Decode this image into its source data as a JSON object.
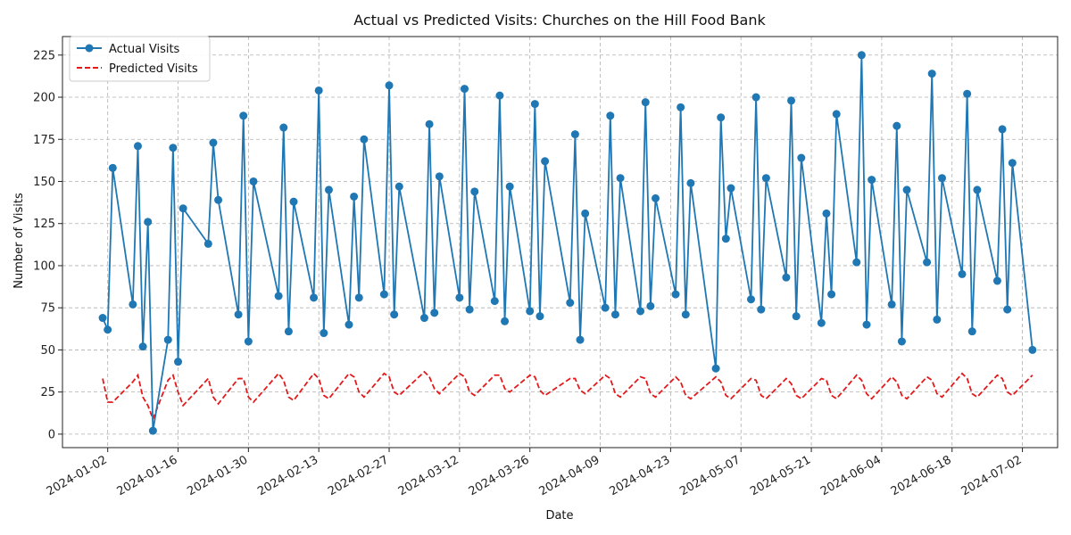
{
  "chart_data": {
    "type": "line",
    "title": "Actual vs Predicted Visits: Churches on the Hill Food Bank",
    "xlabel": "Date",
    "ylabel": "Number of Visits",
    "xlim": [
      "2023-12-24",
      "2024-07-09"
    ],
    "ylim": [
      -8,
      236
    ],
    "x_ticks": [
      "2024-01-02",
      "2024-01-16",
      "2024-01-30",
      "2024-02-13",
      "2024-02-27",
      "2024-03-12",
      "2024-03-26",
      "2024-04-09",
      "2024-04-23",
      "2024-05-07",
      "2024-05-21",
      "2024-06-04",
      "2024-06-18",
      "2024-07-02"
    ],
    "y_ticks": [
      0,
      25,
      50,
      75,
      100,
      125,
      150,
      175,
      200,
      225
    ],
    "grid": true,
    "legend_position": "upper-left",
    "colors": {
      "actual": "#1f77b4",
      "predicted": "#e31a1c"
    },
    "series": [
      {
        "name": "Actual Visits",
        "style": "solid-with-markers",
        "points": [
          [
            "2024-01-01",
            69
          ],
          [
            "2024-01-02",
            62
          ],
          [
            "2024-01-03",
            158
          ],
          [
            "2024-01-07",
            77
          ],
          [
            "2024-01-08",
            171
          ],
          [
            "2024-01-09",
            52
          ],
          [
            "2024-01-10",
            126
          ],
          [
            "2024-01-11",
            2
          ],
          [
            "2024-01-14",
            56
          ],
          [
            "2024-01-15",
            170
          ],
          [
            "2024-01-16",
            43
          ],
          [
            "2024-01-17",
            134
          ],
          [
            "2024-01-22",
            113
          ],
          [
            "2024-01-23",
            173
          ],
          [
            "2024-01-24",
            139
          ],
          [
            "2024-01-28",
            71
          ],
          [
            "2024-01-29",
            189
          ],
          [
            "2024-01-30",
            55
          ],
          [
            "2024-01-31",
            150
          ],
          [
            "2024-02-05",
            82
          ],
          [
            "2024-02-06",
            182
          ],
          [
            "2024-02-07",
            61
          ],
          [
            "2024-02-08",
            138
          ],
          [
            "2024-02-12",
            81
          ],
          [
            "2024-02-13",
            204
          ],
          [
            "2024-02-14",
            60
          ],
          [
            "2024-02-15",
            145
          ],
          [
            "2024-02-19",
            65
          ],
          [
            "2024-02-20",
            141
          ],
          [
            "2024-02-21",
            81
          ],
          [
            "2024-02-22",
            175
          ],
          [
            "2024-02-26",
            83
          ],
          [
            "2024-02-27",
            207
          ],
          [
            "2024-02-28",
            71
          ],
          [
            "2024-02-29",
            147
          ],
          [
            "2024-03-05",
            69
          ],
          [
            "2024-03-06",
            184
          ],
          [
            "2024-03-07",
            72
          ],
          [
            "2024-03-08",
            153
          ],
          [
            "2024-03-12",
            81
          ],
          [
            "2024-03-13",
            205
          ],
          [
            "2024-03-14",
            74
          ],
          [
            "2024-03-15",
            144
          ],
          [
            "2024-03-19",
            79
          ],
          [
            "2024-03-20",
            201
          ],
          [
            "2024-03-21",
            67
          ],
          [
            "2024-03-22",
            147
          ],
          [
            "2024-03-26",
            73
          ],
          [
            "2024-03-27",
            196
          ],
          [
            "2024-03-28",
            70
          ],
          [
            "2024-03-29",
            162
          ],
          [
            "2024-04-03",
            78
          ],
          [
            "2024-04-04",
            178
          ],
          [
            "2024-04-05",
            56
          ],
          [
            "2024-04-06",
            131
          ],
          [
            "2024-04-10",
            75
          ],
          [
            "2024-04-11",
            189
          ],
          [
            "2024-04-12",
            71
          ],
          [
            "2024-04-13",
            152
          ],
          [
            "2024-04-17",
            73
          ],
          [
            "2024-04-18",
            197
          ],
          [
            "2024-04-19",
            76
          ],
          [
            "2024-04-20",
            140
          ],
          [
            "2024-04-24",
            83
          ],
          [
            "2024-04-25",
            194
          ],
          [
            "2024-04-26",
            71
          ],
          [
            "2024-04-27",
            149
          ],
          [
            "2024-05-02",
            39
          ],
          [
            "2024-05-03",
            188
          ],
          [
            "2024-05-04",
            116
          ],
          [
            "2024-05-05",
            146
          ],
          [
            "2024-05-09",
            80
          ],
          [
            "2024-05-10",
            200
          ],
          [
            "2024-05-11",
            74
          ],
          [
            "2024-05-12",
            152
          ],
          [
            "2024-05-16",
            93
          ],
          [
            "2024-05-17",
            198
          ],
          [
            "2024-05-18",
            70
          ],
          [
            "2024-05-19",
            164
          ],
          [
            "2024-05-23",
            66
          ],
          [
            "2024-05-24",
            131
          ],
          [
            "2024-05-25",
            83
          ],
          [
            "2024-05-26",
            190
          ],
          [
            "2024-05-30",
            102
          ],
          [
            "2024-05-31",
            225
          ],
          [
            "2024-06-01",
            65
          ],
          [
            "2024-06-02",
            151
          ],
          [
            "2024-06-06",
            77
          ],
          [
            "2024-06-07",
            183
          ],
          [
            "2024-06-08",
            55
          ],
          [
            "2024-06-09",
            145
          ],
          [
            "2024-06-13",
            102
          ],
          [
            "2024-06-14",
            214
          ],
          [
            "2024-06-15",
            68
          ],
          [
            "2024-06-16",
            152
          ],
          [
            "2024-06-20",
            95
          ],
          [
            "2024-06-21",
            202
          ],
          [
            "2024-06-22",
            61
          ],
          [
            "2024-06-23",
            145
          ],
          [
            "2024-06-27",
            91
          ],
          [
            "2024-06-28",
            181
          ],
          [
            "2024-06-29",
            74
          ],
          [
            "2024-06-30",
            161
          ],
          [
            "2024-07-04",
            50
          ]
        ]
      },
      {
        "name": "Predicted Visits",
        "style": "dashed",
        "points": [
          [
            "2024-01-01",
            33
          ],
          [
            "2024-01-02",
            19
          ],
          [
            "2024-01-03",
            19
          ],
          [
            "2024-01-07",
            31
          ],
          [
            "2024-01-08",
            35
          ],
          [
            "2024-01-09",
            22
          ],
          [
            "2024-01-10",
            17
          ],
          [
            "2024-01-11",
            9
          ],
          [
            "2024-01-14",
            32
          ],
          [
            "2024-01-15",
            35
          ],
          [
            "2024-01-16",
            25
          ],
          [
            "2024-01-17",
            17
          ],
          [
            "2024-01-22",
            33
          ],
          [
            "2024-01-23",
            22
          ],
          [
            "2024-01-24",
            18
          ],
          [
            "2024-01-28",
            33
          ],
          [
            "2024-01-29",
            33
          ],
          [
            "2024-01-30",
            22
          ],
          [
            "2024-01-31",
            19
          ],
          [
            "2024-02-05",
            36
          ],
          [
            "2024-02-06",
            32
          ],
          [
            "2024-02-07",
            22
          ],
          [
            "2024-02-08",
            20
          ],
          [
            "2024-02-12",
            36
          ],
          [
            "2024-02-13",
            33
          ],
          [
            "2024-02-14",
            23
          ],
          [
            "2024-02-15",
            21
          ],
          [
            "2024-02-19",
            36
          ],
          [
            "2024-02-20",
            34
          ],
          [
            "2024-02-21",
            25
          ],
          [
            "2024-02-22",
            22
          ],
          [
            "2024-02-26",
            36
          ],
          [
            "2024-02-27",
            34
          ],
          [
            "2024-02-28",
            25
          ],
          [
            "2024-02-29",
            23
          ],
          [
            "2024-03-05",
            37
          ],
          [
            "2024-03-06",
            34
          ],
          [
            "2024-03-07",
            27
          ],
          [
            "2024-03-08",
            24
          ],
          [
            "2024-03-12",
            36
          ],
          [
            "2024-03-13",
            34
          ],
          [
            "2024-03-14",
            25
          ],
          [
            "2024-03-15",
            23
          ],
          [
            "2024-03-19",
            35
          ],
          [
            "2024-03-20",
            35
          ],
          [
            "2024-03-21",
            27
          ],
          [
            "2024-03-22",
            25
          ],
          [
            "2024-03-26",
            35
          ],
          [
            "2024-03-27",
            34
          ],
          [
            "2024-03-28",
            26
          ],
          [
            "2024-03-29",
            23
          ],
          [
            "2024-04-03",
            33
          ],
          [
            "2024-04-04",
            33
          ],
          [
            "2024-04-05",
            26
          ],
          [
            "2024-04-06",
            24
          ],
          [
            "2024-04-10",
            35
          ],
          [
            "2024-04-11",
            33
          ],
          [
            "2024-04-12",
            24
          ],
          [
            "2024-04-13",
            22
          ],
          [
            "2024-04-17",
            34
          ],
          [
            "2024-04-18",
            33
          ],
          [
            "2024-04-19",
            24
          ],
          [
            "2024-04-20",
            22
          ],
          [
            "2024-04-24",
            34
          ],
          [
            "2024-04-25",
            31
          ],
          [
            "2024-04-26",
            23
          ],
          [
            "2024-04-27",
            21
          ],
          [
            "2024-05-02",
            34
          ],
          [
            "2024-05-03",
            31
          ],
          [
            "2024-05-04",
            23
          ],
          [
            "2024-05-05",
            21
          ],
          [
            "2024-05-09",
            33
          ],
          [
            "2024-05-10",
            32
          ],
          [
            "2024-05-11",
            23
          ],
          [
            "2024-05-12",
            21
          ],
          [
            "2024-05-16",
            33
          ],
          [
            "2024-05-17",
            30
          ],
          [
            "2024-05-18",
            23
          ],
          [
            "2024-05-19",
            21
          ],
          [
            "2024-05-23",
            33
          ],
          [
            "2024-05-24",
            32
          ],
          [
            "2024-05-25",
            23
          ],
          [
            "2024-05-26",
            21
          ],
          [
            "2024-05-30",
            35
          ],
          [
            "2024-05-31",
            32
          ],
          [
            "2024-06-01",
            24
          ],
          [
            "2024-06-02",
            21
          ],
          [
            "2024-06-06",
            34
          ],
          [
            "2024-06-07",
            31
          ],
          [
            "2024-06-08",
            23
          ],
          [
            "2024-06-09",
            21
          ],
          [
            "2024-06-13",
            34
          ],
          [
            "2024-06-14",
            32
          ],
          [
            "2024-06-15",
            24
          ],
          [
            "2024-06-16",
            22
          ],
          [
            "2024-06-20",
            36
          ],
          [
            "2024-06-21",
            33
          ],
          [
            "2024-06-22",
            24
          ],
          [
            "2024-06-23",
            22
          ],
          [
            "2024-06-27",
            35
          ],
          [
            "2024-06-28",
            33
          ],
          [
            "2024-06-29",
            25
          ],
          [
            "2024-06-30",
            23
          ],
          [
            "2024-07-04",
            35
          ]
        ]
      }
    ]
  }
}
